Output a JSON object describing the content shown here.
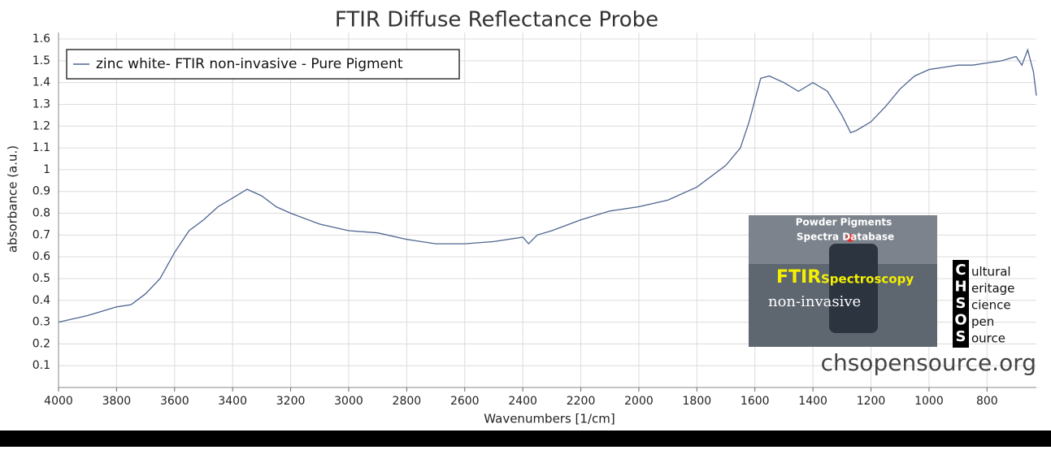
{
  "chart_data": {
    "type": "line",
    "title": "FTIR Diffuse Reflectance Probe",
    "x_label": "Wavenumbers [1/cm]",
    "y_label": "absorbance (a.u.)",
    "x": [
      4000,
      3900,
      3800,
      3750,
      3700,
      3650,
      3600,
      3550,
      3500,
      3450,
      3400,
      3350,
      3300,
      3250,
      3200,
      3100,
      3000,
      2900,
      2800,
      2700,
      2600,
      2500,
      2400,
      2380,
      2350,
      2300,
      2200,
      2100,
      2000,
      1900,
      1800,
      1700,
      1650,
      1620,
      1600,
      1580,
      1550,
      1500,
      1450,
      1400,
      1350,
      1300,
      1270,
      1250,
      1200,
      1150,
      1100,
      1050,
      1000,
      950,
      900,
      850,
      800,
      750,
      700,
      680,
      660,
      640,
      630
    ],
    "series": [
      {
        "name": "zinc white- FTIR non-invasive - Pure Pigment",
        "color": "#4f6590",
        "values": [
          0.3,
          0.33,
          0.37,
          0.38,
          0.43,
          0.5,
          0.62,
          0.72,
          0.77,
          0.83,
          0.87,
          0.91,
          0.88,
          0.83,
          0.8,
          0.75,
          0.72,
          0.71,
          0.68,
          0.66,
          0.66,
          0.67,
          0.69,
          0.66,
          0.7,
          0.72,
          0.77,
          0.81,
          0.83,
          0.86,
          0.92,
          1.02,
          1.1,
          1.22,
          1.32,
          1.42,
          1.43,
          1.4,
          1.36,
          1.4,
          1.36,
          1.25,
          1.17,
          1.18,
          1.22,
          1.29,
          1.37,
          1.43,
          1.46,
          1.47,
          1.48,
          1.48,
          1.49,
          1.5,
          1.52,
          1.48,
          1.55,
          1.45,
          1.34
        ]
      }
    ],
    "xlim": [
      4000,
      630
    ],
    "xticks": [
      4000,
      3800,
      3600,
      3400,
      3200,
      3000,
      2800,
      2600,
      2400,
      2200,
      2000,
      1800,
      1600,
      1400,
      1200,
      1000,
      800
    ],
    "ylim": [
      0,
      1.63
    ],
    "yticks": [
      0.1,
      0.2,
      0.3,
      0.4,
      0.5,
      0.6,
      0.7,
      0.8,
      0.9,
      1,
      1.1,
      1.2,
      1.3,
      1.4,
      1.5,
      1.6
    ],
    "grid": true,
    "legend": "top-left"
  },
  "logo": {
    "line1": "Powder Pigments",
    "line2": "Spectra Database",
    "ftir": "FTIR",
    "spectroscopy": "Spectroscopy",
    "noninvasive": "non-invasive",
    "letters": [
      "C",
      "H",
      "S",
      "O",
      "S"
    ],
    "words": [
      "ultural",
      "eritage",
      "cience",
      "pen",
      "ource"
    ],
    "site": "chsopensource.org"
  }
}
